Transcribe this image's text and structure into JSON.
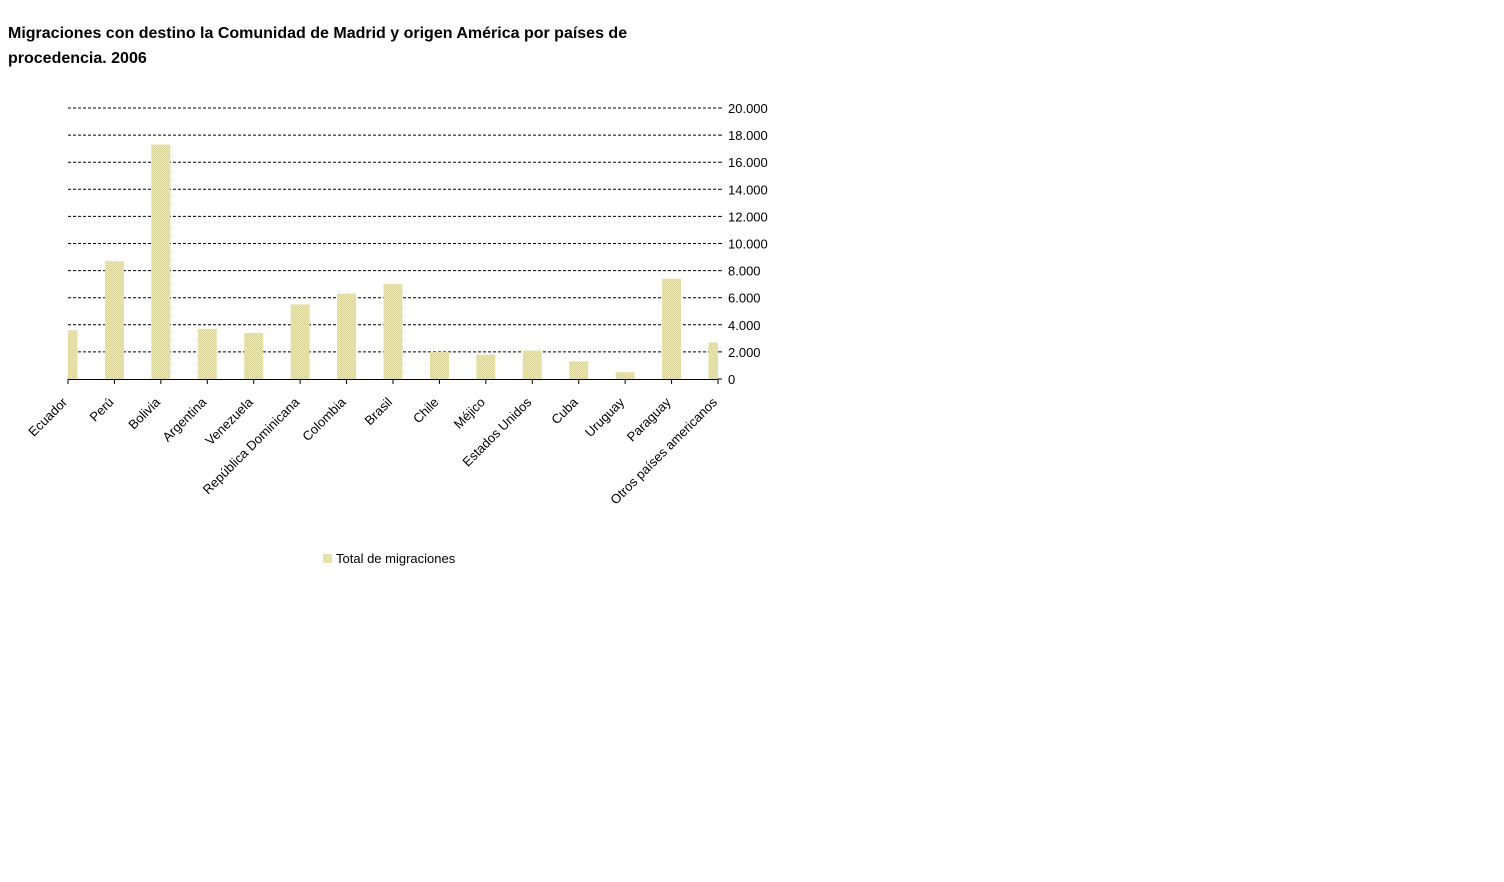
{
  "chart_data": {
    "type": "bar",
    "title": "Migraciones con destino la Comunidad de Madrid y origen  América  por países de procedencia. 2006",
    "xlabel": "",
    "ylabel": "",
    "categories": [
      "Ecuador",
      "Perú",
      "Bolivia",
      "Argentina",
      "Venezuela",
      "República Dominicana",
      "Colombia",
      "Brasil",
      "Chile",
      "Méjico",
      "Estados Unidos",
      "Cuba",
      "Uruguay",
      "Paraguay",
      "Otros países americanos"
    ],
    "series": [
      {
        "name": "Total de migraciones",
        "color": "#e6e2ae",
        "values": [
          3600,
          8700,
          17300,
          3700,
          3400,
          5500,
          6300,
          7000,
          2000,
          1800,
          2100,
          1300,
          500,
          7400,
          2700
        ]
      }
    ],
    "ylim": [
      0,
      20000
    ],
    "yticks": [
      0,
      2000,
      4000,
      6000,
      8000,
      10000,
      12000,
      14000,
      16000,
      18000,
      20000
    ],
    "ytick_labels": [
      "0",
      "2.000",
      "4.000",
      "6.000",
      "8.000",
      "10.000",
      "12.000",
      "14.000",
      "16.000",
      "18.000",
      "20.000"
    ],
    "y_axis_side": "right",
    "grid": true,
    "legend": "bottom"
  }
}
